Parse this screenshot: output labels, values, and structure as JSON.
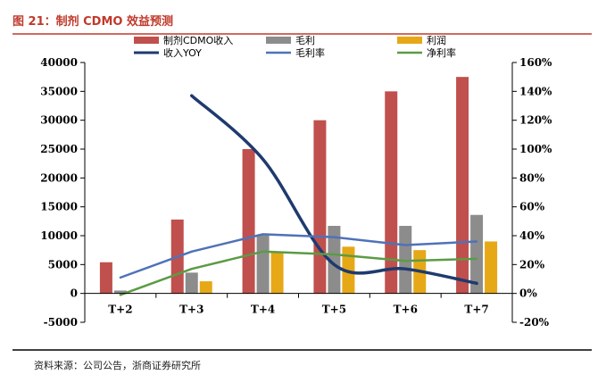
{
  "figure": {
    "title": "图 21：制剂 CDMO 效益预测",
    "source": "资料来源：公司公告，浙商证券研究所"
  },
  "chart_data": {
    "type": "bar",
    "categories": [
      "T+2",
      "T+3",
      "T+4",
      "T+5",
      "T+6",
      "T+7"
    ],
    "left_axis": {
      "min": -5000,
      "max": 40000,
      "step": 5000
    },
    "right_axis": {
      "min": -20,
      "max": 160,
      "step": 20,
      "unit": "%"
    },
    "bar_series": [
      {
        "name": "制剂CDMO收入",
        "color": "#c0504d",
        "values": [
          5400,
          12800,
          25000,
          30000,
          35000,
          37500
        ]
      },
      {
        "name": "毛利",
        "color": "#8c8c8c",
        "values": [
          500,
          3600,
          10200,
          11700,
          11700,
          13600
        ]
      },
      {
        "name": "利润",
        "color": "#e6a817",
        "values": [
          null,
          2100,
          7100,
          8100,
          7500,
          9000
        ]
      }
    ],
    "line_series": [
      {
        "name": "收入YOY",
        "color": "#1f3a6e",
        "width": 3.5,
        "smooth": true,
        "values": [
          null,
          137,
          93,
          20,
          17,
          7
        ]
      },
      {
        "name": "毛利率",
        "color": "#4f72b8",
        "width": 2.5,
        "smooth": false,
        "values": [
          11,
          29,
          41,
          39,
          33.5,
          36
        ]
      },
      {
        "name": "净利率",
        "color": "#5b9b45",
        "width": 2.5,
        "smooth": false,
        "values": [
          -1,
          17,
          29,
          27,
          22.5,
          24
        ]
      }
    ],
    "legend": {
      "position": "top"
    }
  }
}
